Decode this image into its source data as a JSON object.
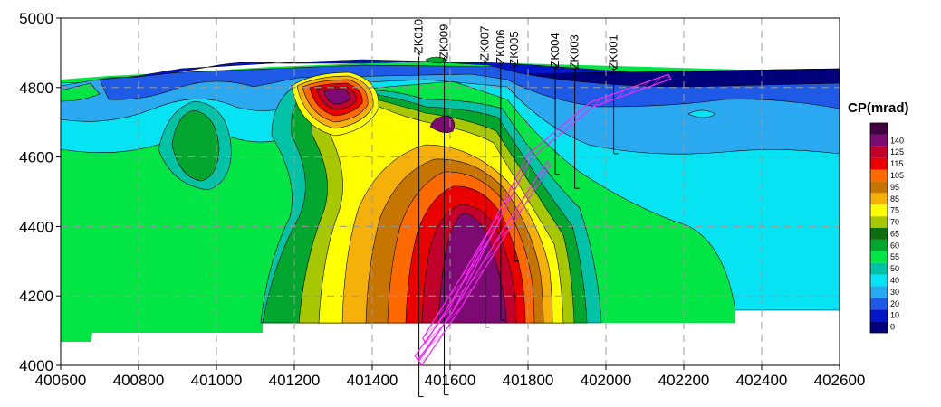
{
  "chart_data": {
    "type": "heatmap",
    "title": "",
    "xlabel": "",
    "ylabel": "",
    "xlim": [
      400600,
      402600
    ],
    "ylim": [
      4000,
      5000
    ],
    "x_ticks": [
      400600,
      400800,
      401000,
      401200,
      401400,
      401600,
      401800,
      402000,
      402200,
      402400,
      402600
    ],
    "y_ticks": [
      4000,
      4200,
      4400,
      4600,
      4800,
      5000
    ],
    "grid": true,
    "colorbar": {
      "title": "CP(mrad)",
      "levels": [
        0,
        10,
        20,
        30,
        40,
        50,
        55,
        60,
        65,
        70,
        75,
        85,
        95,
        105,
        115,
        125,
        140
      ],
      "colors": [
        "#00007a",
        "#0015c8",
        "#1f5ae6",
        "#2aa9f0",
        "#06e3f3",
        "#00c2a6",
        "#01e645",
        "#00a62d",
        "#0c6e0c",
        "#a7c800",
        "#ffff00",
        "#f5b00a",
        "#c67600",
        "#ff6a00",
        "#ea0000",
        "#c1002c",
        "#7d0a73",
        "#420042"
      ]
    },
    "drillholes": [
      {
        "name": "ZK010",
        "x": 401520,
        "top": 4890,
        "bottom": 3910
      },
      {
        "name": "ZK009",
        "x": 401585,
        "top": 4875,
        "bottom": 3915
      },
      {
        "name": "ZK007",
        "x": 401690,
        "top": 4870,
        "bottom": 4110
      },
      {
        "name": "ZK006",
        "x": 401730,
        "top": 4860,
        "bottom": 4130
      },
      {
        "name": "ZK005",
        "x": 401765,
        "top": 4855,
        "bottom": 4300
      },
      {
        "name": "ZK004",
        "x": 401870,
        "top": 4850,
        "bottom": 4550
      },
      {
        "name": "ZK003",
        "x": 401920,
        "top": 4845,
        "bottom": 4510
      },
      {
        "name": "ZK001",
        "x": 402020,
        "top": 4845,
        "bottom": 4610
      }
    ],
    "orebodies": [
      {
        "points": [
          [
            401510,
            4020
          ],
          [
            401600,
            4160
          ],
          [
            401700,
            4380
          ],
          [
            401800,
            4600
          ],
          [
            401960,
            4750
          ],
          [
            402160,
            4830
          ]
        ]
      },
      {
        "points": [
          [
            401520,
            4005
          ],
          [
            401620,
            4170
          ],
          [
            401740,
            4390
          ],
          [
            401850,
            4580
          ]
        ]
      },
      {
        "points": [
          [
            401530,
            4070
          ],
          [
            401630,
            4250
          ],
          [
            401720,
            4420
          ]
        ]
      }
    ]
  }
}
